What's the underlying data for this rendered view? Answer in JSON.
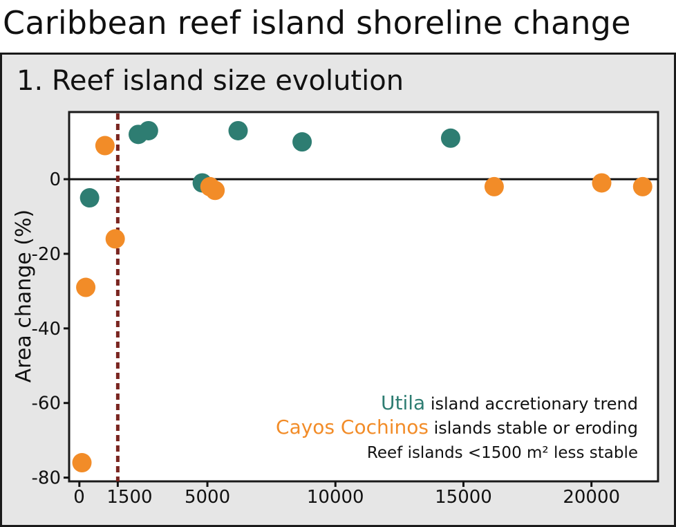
{
  "title": "Caribbean reef island shoreline change",
  "panel_title": "1. Reef island size evolution",
  "chart_data": {
    "type": "scatter",
    "ylabel": "Area change (%)",
    "xlabel": "",
    "x_ticks": [
      "0",
      "1500",
      "5000",
      "10000",
      "15000",
      "20000"
    ],
    "y_ticks": [
      "0",
      "-20",
      "-40",
      "-60",
      "-80"
    ],
    "xlim": [
      -400,
      22600
    ],
    "ylim": [
      -81,
      18
    ],
    "threshold_x": 1500,
    "legend": [
      {
        "label": "Utila",
        "text": " island accretionary trend",
        "color": "#2e7d72"
      },
      {
        "label": "Cayos Cochinos",
        "text": " islands stable or eroding",
        "color": "#f28c28"
      },
      {
        "label": "",
        "text": "Reef islands <1500 m² less stable",
        "color": "#111111"
      }
    ],
    "series": [
      {
        "name": "Utila",
        "color": "#2e7d72",
        "points": [
          [
            400,
            -5
          ],
          [
            2300,
            12
          ],
          [
            2700,
            13
          ],
          [
            4800,
            -1
          ],
          [
            6200,
            13
          ],
          [
            8700,
            10
          ],
          [
            14500,
            11
          ]
        ]
      },
      {
        "name": "Cayos Cochinos",
        "color": "#f28c28",
        "points": [
          [
            100,
            -76
          ],
          [
            250,
            -29
          ],
          [
            1000,
            9
          ],
          [
            1400,
            -16
          ],
          [
            5100,
            -2
          ],
          [
            5300,
            -3
          ],
          [
            16200,
            -2
          ],
          [
            20400,
            -1
          ],
          [
            22000,
            -2
          ]
        ]
      }
    ]
  }
}
